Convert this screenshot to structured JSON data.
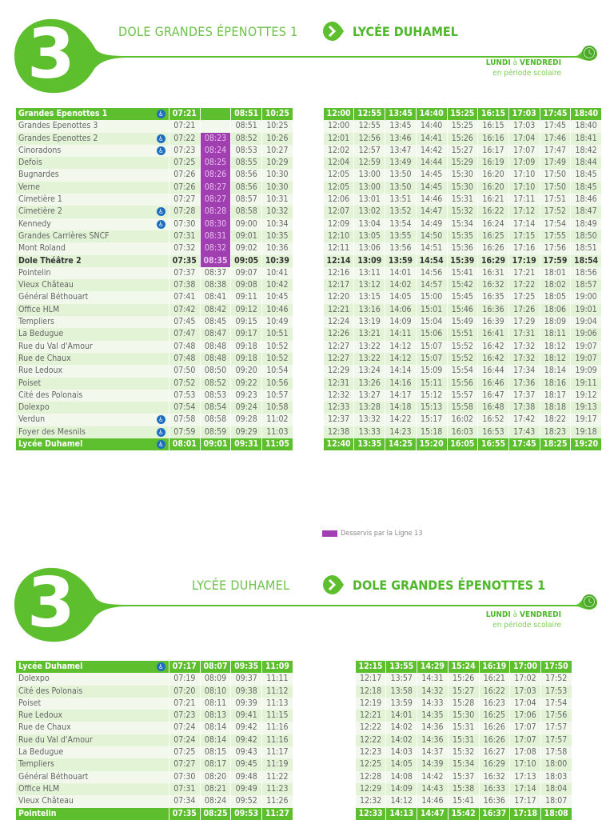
{
  "colors": {
    "green": "#5dbf2e",
    "purple": "#a040b0",
    "wheelchair": "#1e6fc0"
  },
  "outbound": {
    "line_number": "3",
    "from": "DOLE GRANDES ÉPENOTTES 1",
    "to": "LYCÉE DUHAMEL",
    "days_from": "LUNDI",
    "days_a": "à",
    "days_to": "VENDREDI",
    "period": "en période scolaire",
    "morning_cols": 4,
    "rows": [
      {
        "stop": "Grandes Epenottes 1",
        "access": true,
        "times": [
          "07:21",
          "",
          "08:51",
          "10:25",
          "12:00",
          "12:55",
          "13:45",
          "14:40",
          "15:25",
          "16:15",
          "17:03",
          "17:45",
          "18:40"
        ]
      },
      {
        "stop": "Grandes Epenottes 3",
        "access": false,
        "times": [
          "07:21",
          "",
          "08:51",
          "10:25",
          "12:00",
          "12:55",
          "13:45",
          "14:40",
          "15:25",
          "16:15",
          "17:03",
          "17:45",
          "18:40"
        ]
      },
      {
        "stop": "Grandes Epenottes 2",
        "access": true,
        "l13": true,
        "times": [
          "07:22",
          "08:23",
          "08:52",
          "10:26",
          "12:01",
          "12:56",
          "13:46",
          "14:41",
          "15:26",
          "16:16",
          "17:04",
          "17:46",
          "18:41"
        ]
      },
      {
        "stop": "Cinoradons",
        "access": true,
        "l13": true,
        "times": [
          "07:23",
          "08:24",
          "08:53",
          "10:27",
          "12:02",
          "12:57",
          "13:47",
          "14:42",
          "15:27",
          "16:17",
          "17:07",
          "17:47",
          "18:42"
        ]
      },
      {
        "stop": "Defois",
        "access": false,
        "l13": true,
        "times": [
          "07:25",
          "08:25",
          "08:55",
          "10:29",
          "12:04",
          "12:59",
          "13:49",
          "14:44",
          "15:29",
          "16:19",
          "17:09",
          "17:49",
          "18:44"
        ]
      },
      {
        "stop": "Bugnardes",
        "access": false,
        "l13": true,
        "times": [
          "07:26",
          "08:26",
          "08:56",
          "10:30",
          "12:05",
          "13:00",
          "13:50",
          "14:45",
          "15:30",
          "16:20",
          "17:10",
          "17:50",
          "18:45"
        ]
      },
      {
        "stop": "Verne",
        "access": false,
        "l13": true,
        "times": [
          "07:26",
          "08:27",
          "08:56",
          "10:30",
          "12:05",
          "13:00",
          "13:50",
          "14:45",
          "15:30",
          "16:20",
          "17:10",
          "17:50",
          "18:45"
        ]
      },
      {
        "stop": "Cimetière 1",
        "access": false,
        "l13": true,
        "times": [
          "07:27",
          "08:27",
          "08:57",
          "10:31",
          "12:06",
          "13:01",
          "13:51",
          "14:46",
          "15:31",
          "16:21",
          "17:11",
          "17:51",
          "18:46"
        ]
      },
      {
        "stop": "Cimetière 2",
        "access": true,
        "l13": true,
        "times": [
          "07:28",
          "08:28",
          "08:58",
          "10:32",
          "12:07",
          "13:02",
          "13:52",
          "14:47",
          "15:32",
          "16:22",
          "17:12",
          "17:52",
          "18:47"
        ]
      },
      {
        "stop": "Kennedy",
        "access": true,
        "l13": true,
        "times": [
          "07:30",
          "08:30",
          "09:00",
          "10:34",
          "12:09",
          "13:04",
          "13:54",
          "14:49",
          "15:34",
          "16:24",
          "17:14",
          "17:54",
          "18:49"
        ]
      },
      {
        "stop": "Grandes Carrières SNCF",
        "access": false,
        "l13": true,
        "times": [
          "07:31",
          "08:31",
          "09:01",
          "10:35",
          "12:10",
          "13:05",
          "13:55",
          "14:50",
          "15:35",
          "16:25",
          "17:15",
          "17:55",
          "18:50"
        ]
      },
      {
        "stop": "Mont Roland",
        "access": false,
        "l13": true,
        "times": [
          "07:32",
          "08:32",
          "09:02",
          "10:36",
          "12:11",
          "13:06",
          "13:56",
          "14:51",
          "15:36",
          "16:26",
          "17:16",
          "17:56",
          "18:51"
        ]
      },
      {
        "stop": "Dole Théâtre 2",
        "access": false,
        "l13": true,
        "bold": true,
        "times": [
          "07:35",
          "08:35",
          "09:05",
          "10:39",
          "12:14",
          "13:09",
          "13:59",
          "14:54",
          "15:39",
          "16:29",
          "17:19",
          "17:59",
          "18:54"
        ]
      },
      {
        "stop": "Pointelin",
        "access": false,
        "times": [
          "07:37",
          "08:37",
          "09:07",
          "10:41",
          "12:16",
          "13:11",
          "14:01",
          "14:56",
          "15:41",
          "16:31",
          "17:21",
          "18:01",
          "18:56"
        ]
      },
      {
        "stop": "Vieux Château",
        "access": false,
        "times": [
          "07:38",
          "08:38",
          "09:08",
          "10:42",
          "12:17",
          "13:12",
          "14:02",
          "14:57",
          "15:42",
          "16:32",
          "17:22",
          "18:02",
          "18:57"
        ]
      },
      {
        "stop": "Général Béthouart",
        "access": false,
        "times": [
          "07:41",
          "08:41",
          "09:11",
          "10:45",
          "12:20",
          "13:15",
          "14:05",
          "15:00",
          "15:45",
          "16:35",
          "17:25",
          "18:05",
          "19:00"
        ]
      },
      {
        "stop": "Office HLM",
        "access": false,
        "times": [
          "07:42",
          "08:42",
          "09:12",
          "10:46",
          "12:21",
          "13:16",
          "14:06",
          "15:01",
          "15:46",
          "16:36",
          "17:26",
          "18:06",
          "19:01"
        ]
      },
      {
        "stop": "Templiers",
        "access": false,
        "times": [
          "07:45",
          "08:45",
          "09:15",
          "10:49",
          "12:24",
          "13:19",
          "14:09",
          "15:04",
          "15:49",
          "16:39",
          "17:29",
          "18:09",
          "19:04"
        ]
      },
      {
        "stop": "La Bedugue",
        "access": false,
        "times": [
          "07:47",
          "08:47",
          "09:17",
          "10:51",
          "12:26",
          "13:21",
          "14:11",
          "15:06",
          "15:51",
          "16:41",
          "17:31",
          "18:11",
          "19:06"
        ]
      },
      {
        "stop": "Rue du Val d'Amour",
        "access": false,
        "times": [
          "07:48",
          "08:48",
          "09:18",
          "10:52",
          "12:27",
          "13:22",
          "14:12",
          "15:07",
          "15:52",
          "16:42",
          "17:32",
          "18:12",
          "19:07"
        ]
      },
      {
        "stop": "Rue de Chaux",
        "access": false,
        "times": [
          "07:48",
          "08:48",
          "09:18",
          "10:52",
          "12:27",
          "13:22",
          "14:12",
          "15:07",
          "15:52",
          "16:42",
          "17:32",
          "18:12",
          "19:07"
        ]
      },
      {
        "stop": "Rue Ledoux",
        "access": false,
        "times": [
          "07:50",
          "08:50",
          "09:20",
          "10:54",
          "12:29",
          "13:24",
          "14:14",
          "15:09",
          "15:54",
          "16:44",
          "17:34",
          "18:14",
          "19:09"
        ]
      },
      {
        "stop": "Poiset",
        "access": false,
        "times": [
          "07:52",
          "08:52",
          "09:22",
          "10:56",
          "12:31",
          "13:26",
          "14:16",
          "15:11",
          "15:56",
          "16:46",
          "17:36",
          "18:16",
          "19:11"
        ]
      },
      {
        "stop": "Cité des Polonais",
        "access": false,
        "times": [
          "07:53",
          "08:53",
          "09:23",
          "10:57",
          "12:32",
          "13:27",
          "14:17",
          "15:12",
          "15:57",
          "16:47",
          "17:37",
          "18:17",
          "19:12"
        ]
      },
      {
        "stop": "Dolexpo",
        "access": false,
        "times": [
          "07:54",
          "08:54",
          "09:24",
          "10:58",
          "12:33",
          "13:28",
          "14:18",
          "15:13",
          "15:58",
          "16:48",
          "17:38",
          "18:18",
          "19:13"
        ]
      },
      {
        "stop": "Verdun",
        "access": true,
        "times": [
          "07:58",
          "08:58",
          "09:28",
          "11:02",
          "12:37",
          "13:32",
          "14:22",
          "15:17",
          "16:02",
          "16:52",
          "17:42",
          "18:22",
          "19:17"
        ]
      },
      {
        "stop": "Foyer des Mesnils",
        "access": true,
        "times": [
          "07:59",
          "08:59",
          "09:29",
          "11:03",
          "12:38",
          "13:33",
          "14:23",
          "15:18",
          "16:03",
          "16:53",
          "17:43",
          "18:23",
          "19:18"
        ]
      },
      {
        "stop": "Lycée Duhamel",
        "access": true,
        "times": [
          "08:01",
          "09:01",
          "09:31",
          "11:05",
          "12:40",
          "13:35",
          "14:25",
          "15:20",
          "16:05",
          "16:55",
          "17:45",
          "18:25",
          "19:20"
        ]
      }
    ]
  },
  "legend": {
    "label": "Desservis par la Ligne 13"
  },
  "inbound": {
    "line_number": "3",
    "from": "LYCÉE DUHAMEL",
    "to": "DOLE GRANDES ÉPENOTTES 1",
    "days_from": "LUNDI",
    "days_a": "à",
    "days_to": "VENDREDI",
    "period": "en période scolaire",
    "morning_cols": 4,
    "rows": [
      {
        "stop": "Lycée Duhamel",
        "access": true,
        "times": [
          "07:17",
          "08:07",
          "09:35",
          "11:09",
          "12:15",
          "13:55",
          "14:29",
          "15:24",
          "16:19",
          "17:00",
          "17:50"
        ]
      },
      {
        "stop": "Dolexpo",
        "access": false,
        "times": [
          "07:19",
          "08:09",
          "09:37",
          "11:11",
          "12:17",
          "13:57",
          "14:31",
          "15:26",
          "16:21",
          "17:02",
          "17:52"
        ]
      },
      {
        "stop": "Cité des Polonais",
        "access": false,
        "times": [
          "07:20",
          "08:10",
          "09:38",
          "11:12",
          "12:18",
          "13:58",
          "14:32",
          "15:27",
          "16:22",
          "17:03",
          "17:53"
        ]
      },
      {
        "stop": "Poiset",
        "access": false,
        "times": [
          "07:21",
          "08:11",
          "09:39",
          "11:13",
          "12:19",
          "13:59",
          "14:33",
          "15:28",
          "16:23",
          "17:04",
          "17:54"
        ]
      },
      {
        "stop": "Rue Ledoux",
        "access": false,
        "times": [
          "07:23",
          "08:13",
          "09:41",
          "11:15",
          "12:21",
          "14:01",
          "14:35",
          "15:30",
          "16:25",
          "17:06",
          "17:56"
        ]
      },
      {
        "stop": "Rue de Chaux",
        "access": false,
        "times": [
          "07:24",
          "08:14",
          "09:42",
          "11:16",
          "12:22",
          "14:02",
          "14:36",
          "15:31",
          "16:26",
          "17:07",
          "17:57"
        ]
      },
      {
        "stop": "Rue du Val d'Amour",
        "access": false,
        "times": [
          "07:24",
          "08:14",
          "09:42",
          "11:16",
          "12:22",
          "14:02",
          "14:36",
          "15:31",
          "16:26",
          "17:07",
          "17:57"
        ]
      },
      {
        "stop": "La Bedugue",
        "access": false,
        "times": [
          "07:25",
          "08:15",
          "09:43",
          "11:17",
          "12:23",
          "14:03",
          "14:37",
          "15:32",
          "16:27",
          "17:08",
          "17:58"
        ]
      },
      {
        "stop": "Templiers",
        "access": false,
        "times": [
          "07:27",
          "08:17",
          "09:45",
          "11:19",
          "12:25",
          "14:05",
          "14:39",
          "15:34",
          "16:29",
          "17:10",
          "18:00"
        ]
      },
      {
        "stop": "Général Béthouart",
        "access": false,
        "times": [
          "07:30",
          "08:20",
          "09:48",
          "11:22",
          "12:28",
          "14:08",
          "14:42",
          "15:37",
          "16:32",
          "17:13",
          "18:03"
        ]
      },
      {
        "stop": "Office HLM",
        "access": false,
        "times": [
          "07:31",
          "08:21",
          "09:49",
          "11:23",
          "12:29",
          "14:09",
          "14:43",
          "15:38",
          "16:33",
          "17:14",
          "18:04"
        ]
      },
      {
        "stop": "Vieux Château",
        "access": false,
        "times": [
          "07:34",
          "08:24",
          "09:52",
          "11:26",
          "12:32",
          "14:12",
          "14:46",
          "15:41",
          "16:36",
          "17:17",
          "18:07"
        ]
      },
      {
        "stop": "Pointelin",
        "access": false,
        "times": [
          "07:35",
          "08:25",
          "09:53",
          "11:27",
          "12:33",
          "14:13",
          "14:47",
          "15:42",
          "16:37",
          "17:18",
          "18:08"
        ]
      }
    ]
  }
}
